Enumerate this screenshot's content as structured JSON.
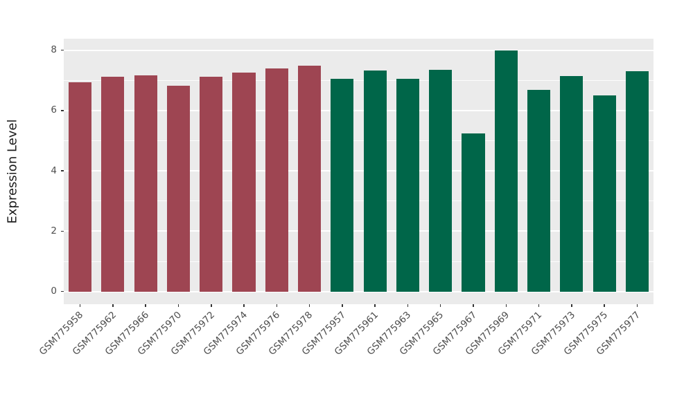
{
  "figure": {
    "background": "#FFFFFF",
    "panel_background": "#EBEBEB",
    "grid_color": "#FFFFFF",
    "tick_label_color": "#4D4D4D",
    "axis_title_color": "#1A1A1A"
  },
  "chart_data": {
    "type": "bar",
    "title": "",
    "xlabel": "",
    "ylabel": "Expression Level",
    "ylim": [
      -0.42,
      8.38
    ],
    "yticks": [
      0,
      2,
      4,
      6,
      8
    ],
    "yminor": [
      1,
      3,
      5,
      7
    ],
    "grid": true,
    "legend": "none",
    "bar_width_ratio": 0.7,
    "categories": [
      "GSM775958",
      "GSM775962",
      "GSM775966",
      "GSM775970",
      "GSM775972",
      "GSM775974",
      "GSM775976",
      "GSM775978",
      "GSM775957",
      "GSM775961",
      "GSM775963",
      "GSM775965",
      "GSM775967",
      "GSM775969",
      "GSM775971",
      "GSM775973",
      "GSM775975",
      "GSM775977"
    ],
    "values": [
      6.93,
      7.13,
      7.16,
      6.82,
      7.11,
      7.25,
      7.4,
      7.48,
      7.04,
      7.33,
      7.06,
      7.36,
      5.23,
      7.98,
      6.68,
      7.15,
      6.5,
      7.3
    ],
    "groups": [
      "group1",
      "group1",
      "group1",
      "group1",
      "group1",
      "group1",
      "group1",
      "group1",
      "group2",
      "group2",
      "group2",
      "group2",
      "group2",
      "group2",
      "group2",
      "group2",
      "group2",
      "group2"
    ],
    "group_colors": {
      "group1": "#9E4552",
      "group2": "#006649"
    }
  }
}
